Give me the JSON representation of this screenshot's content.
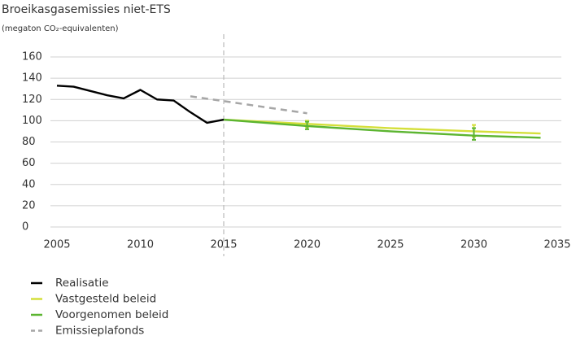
{
  "chart_data": {
    "type": "line",
    "title": "Broeikasgasemissies niet-ETS",
    "subtitle": "(megaton CO₂-equivalenten)",
    "xlim": [
      2005,
      2035
    ],
    "xticks": [
      2005,
      2010,
      2015,
      2020,
      2025,
      2030,
      2035
    ],
    "ylim": [
      0,
      160
    ],
    "yticks": [
      0,
      20,
      40,
      60,
      80,
      100,
      120,
      140,
      160
    ],
    "grid": true,
    "vline": 2015,
    "legend": "bottom-left",
    "series": [
      {
        "name": "Realisatie",
        "color": "#000000",
        "dash": false,
        "x": [
          2005,
          2006,
          2007,
          2008,
          2009,
          2010,
          2011,
          2012,
          2013,
          2014,
          2015
        ],
        "values": [
          133,
          132,
          128,
          124,
          121,
          129,
          120,
          119,
          108,
          98,
          101
        ]
      },
      {
        "name": "Vastgesteld beleid",
        "color": "#d4df3a",
        "dash": false,
        "x": [
          2015,
          2020,
          2025,
          2030,
          2034
        ],
        "values": [
          101,
          97,
          93,
          90,
          88
        ],
        "error_x": [
          2020,
          2030
        ],
        "error_low": [
          94,
          85
        ],
        "error_high": [
          100,
          96
        ]
      },
      {
        "name": "Voorgenomen beleid",
        "color": "#5cb531",
        "dash": false,
        "x": [
          2015,
          2020,
          2025,
          2030,
          2034
        ],
        "values": [
          101,
          95,
          90,
          86,
          84
        ],
        "error_x": [
          2020,
          2030
        ],
        "error_low": [
          92,
          82
        ],
        "error_high": [
          99,
          93
        ]
      },
      {
        "name": "Emissieplafonds",
        "color": "#a6a6a6",
        "dash": true,
        "x": [
          2013,
          2020
        ],
        "values": [
          123,
          107
        ]
      }
    ]
  }
}
